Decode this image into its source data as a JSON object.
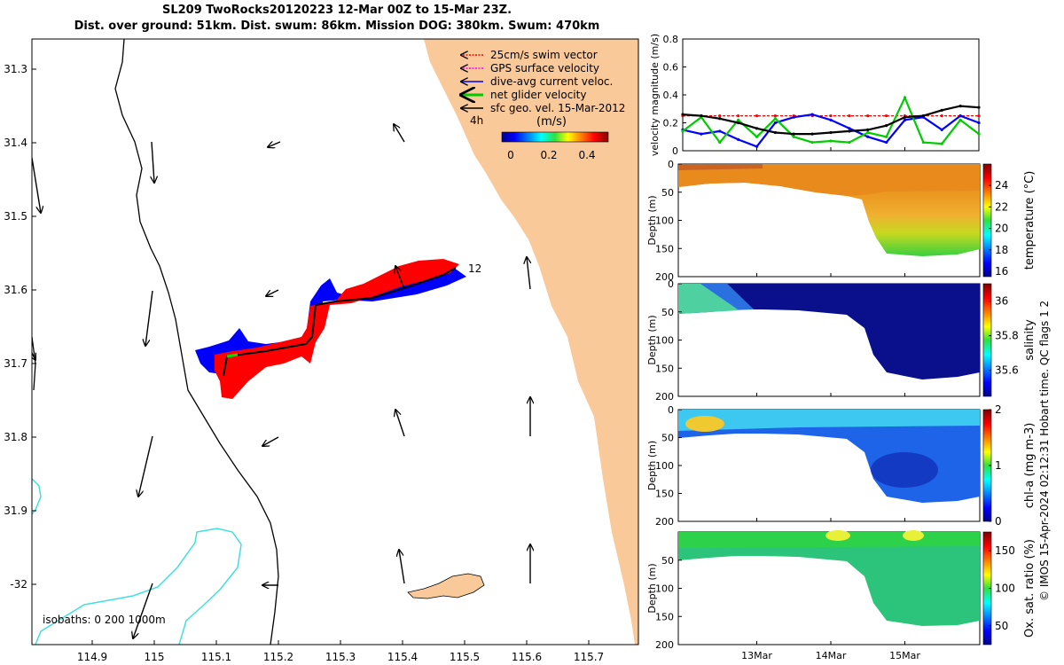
{
  "header": {
    "title_line1": "SL209 TwoRocks20120223 12-Mar 00Z to 15-Mar 23Z.",
    "title_line2": "Dist. over ground: 51km. Dist. swum: 86km. Mission DOG: 380km. Swum: 470km"
  },
  "map": {
    "lon_ticks": [
      "114.9",
      "115",
      "115.1",
      "115.2",
      "115.3",
      "115.4",
      "115.5",
      "115.6",
      "115.7"
    ],
    "lat_ticks": [
      "31.3",
      "31.4",
      "31.5",
      "31.6",
      "31.7",
      "31.8",
      "31.9",
      "-32"
    ],
    "legend": [
      {
        "label": "25cm/s swim vector",
        "color": "#ff0000"
      },
      {
        "label": "GPS surface velocity",
        "color": "#ff00ff"
      },
      {
        "label": "dive-avg current veloc.",
        "color": "#0000ff"
      },
      {
        "label": "net glider velocity",
        "color": "#00cc00"
      },
      {
        "label": "sfc geo. vel. 15-Mar-2012",
        "color": "#000000"
      }
    ],
    "scale_arrow_label": "4h",
    "colorbar_unit": "(m/s)",
    "colorbar_ticks": [
      "0",
      "0.2",
      "0.4"
    ],
    "track_end_label": "12",
    "isobaths_label": "isobaths: 0   200  1000m",
    "land_color": "#f9c99a",
    "isobath_color": "#40e0e0"
  },
  "chart_data": [
    {
      "type": "line",
      "title": "velocity magnitude",
      "ylabel": "velocity magnitude (m/s)",
      "ylim": [
        0,
        0.8
      ],
      "yticks": [
        "0",
        "0.2",
        "0.4",
        "0.6",
        "0.8"
      ],
      "x": [
        0,
        0.25,
        0.5,
        0.75,
        1.0,
        1.25,
        1.5,
        1.75,
        2.0,
        2.25,
        2.5,
        2.75,
        3.0,
        3.25,
        3.5,
        3.75,
        4.0
      ],
      "series": [
        {
          "name": "25cm/s swim vector",
          "color": "#ff0000",
          "values": [
            0.25,
            0.25,
            0.25,
            0.25,
            0.25,
            0.25,
            0.25,
            0.25,
            0.25,
            0.25,
            0.25,
            0.25,
            0.25,
            0.25,
            0.25,
            0.25,
            0.25
          ]
        },
        {
          "name": "dive-avg current veloc.",
          "color": "#0000ff",
          "values": [
            0.15,
            0.12,
            0.14,
            0.08,
            0.03,
            0.2,
            0.24,
            0.26,
            0.22,
            0.16,
            0.1,
            0.06,
            0.22,
            0.24,
            0.15,
            0.25,
            0.2
          ]
        },
        {
          "name": "net glider velocity",
          "color": "#00cc00",
          "values": [
            0.14,
            0.24,
            0.06,
            0.22,
            0.1,
            0.23,
            0.1,
            0.06,
            0.07,
            0.06,
            0.13,
            0.1,
            0.38,
            0.06,
            0.05,
            0.22,
            0.12
          ]
        },
        {
          "name": "sfc geo. vel.",
          "color": "#000000",
          "values": [
            0.26,
            0.25,
            0.23,
            0.2,
            0.16,
            0.13,
            0.12,
            0.12,
            0.13,
            0.14,
            0.15,
            0.18,
            0.24,
            0.25,
            0.29,
            0.32,
            0.31
          ]
        }
      ]
    },
    {
      "type": "heatmap",
      "ylabel": "Depth (m)",
      "cbar_label": "temperature (°C)",
      "ylim": [
        200,
        0
      ],
      "yticks": [
        "0",
        "50",
        "100",
        "150",
        "200"
      ],
      "cbar_range": [
        15.5,
        26
      ],
      "cbar_ticks": [
        "16",
        "18",
        "20",
        "22",
        "24"
      ]
    },
    {
      "type": "heatmap",
      "ylabel": "Depth (m)",
      "cbar_label": "salinity",
      "ylim": [
        200,
        0
      ],
      "yticks": [
        "0",
        "50",
        "100",
        "150",
        "200"
      ],
      "cbar_range": [
        35.45,
        36.1
      ],
      "cbar_ticks": [
        "35.6",
        "35.8",
        "36"
      ]
    },
    {
      "type": "heatmap",
      "ylabel": "Depth (m)",
      "cbar_label": "chl-a (mg m-3)",
      "ylim": [
        200,
        0
      ],
      "yticks": [
        "0",
        "50",
        "100",
        "150",
        "200"
      ],
      "cbar_range": [
        0,
        2
      ],
      "cbar_ticks": [
        "0",
        "1",
        "2"
      ]
    },
    {
      "type": "heatmap",
      "ylabel": "Depth (m)",
      "cbar_label": "Ox. sat. ratio (%)",
      "ylim": [
        200,
        0
      ],
      "yticks": [
        "50",
        "100",
        "150",
        "200"
      ],
      "cbar_range": [
        25,
        175
      ],
      "cbar_ticks": [
        "50",
        "100",
        "150"
      ]
    }
  ],
  "time_axis": {
    "xticks": [
      "13Mar",
      "14Mar",
      "15Mar"
    ],
    "xrange_days": [
      0,
      4
    ]
  },
  "footer": {
    "qc_note": "© IMOS 15-Apr-2024 02:12:31 Hobart time. QC flags 1  2"
  }
}
